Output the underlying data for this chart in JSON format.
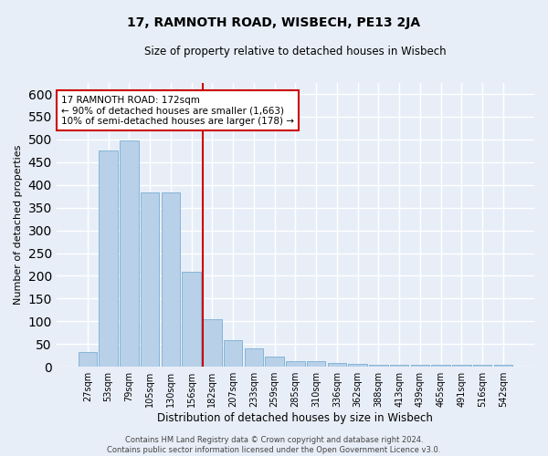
{
  "title": "17, RAMNOTH ROAD, WISBECH, PE13 2JA",
  "subtitle": "Size of property relative to detached houses in Wisbech",
  "xlabel": "Distribution of detached houses by size in Wisbech",
  "ylabel": "Number of detached properties",
  "categories": [
    "27sqm",
    "53sqm",
    "79sqm",
    "105sqm",
    "130sqm",
    "156sqm",
    "182sqm",
    "207sqm",
    "233sqm",
    "259sqm",
    "285sqm",
    "310sqm",
    "336sqm",
    "362sqm",
    "388sqm",
    "413sqm",
    "439sqm",
    "465sqm",
    "491sqm",
    "516sqm",
    "542sqm"
  ],
  "values": [
    33,
    475,
    497,
    383,
    383,
    209,
    105,
    59,
    40,
    22,
    13,
    12,
    9,
    6,
    5,
    5,
    5,
    5,
    5,
    5,
    5
  ],
  "bar_color": "#b8d0e8",
  "bar_edge_color": "#7aafd4",
  "highlight_index": 6,
  "highlight_color": "#cc0000",
  "ylim": [
    0,
    625
  ],
  "yticks": [
    0,
    50,
    100,
    150,
    200,
    250,
    300,
    350,
    400,
    450,
    500,
    550,
    600
  ],
  "annotation_title": "17 RAMNOTH ROAD: 172sqm",
  "annotation_line1": "← 90% of detached houses are smaller (1,663)",
  "annotation_line2": "10% of semi-detached houses are larger (178) →",
  "footer_line1": "Contains HM Land Registry data © Crown copyright and database right 2024.",
  "footer_line2": "Contains public sector information licensed under the Open Government Licence v3.0.",
  "background_color": "#e8eef8",
  "plot_bg_color": "#e8eef8",
  "grid_color": "#ffffff"
}
